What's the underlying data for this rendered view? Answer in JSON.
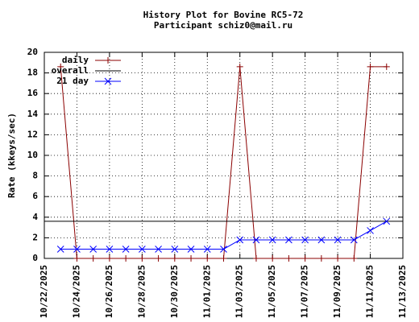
{
  "chart_data": {
    "type": "line",
    "title": "History Plot for Bovine RC5-72",
    "subtitle": "Participant schiz0@mail.ru",
    "y_label": "Rate (kkeys/sec)",
    "x": [
      "10/23/2025",
      "10/24/2025",
      "10/25/2025",
      "10/26/2025",
      "10/27/2025",
      "10/28/2025",
      "10/29/2025",
      "10/30/2025",
      "10/31/2025",
      "11/01/2025",
      "11/02/2025",
      "11/03/2025",
      "11/04/2025",
      "11/05/2025",
      "11/06/2025",
      "11/07/2025",
      "11/08/2025",
      "11/09/2025",
      "11/10/2025",
      "11/11/2025",
      "11/12/2025"
    ],
    "series": [
      {
        "name": "daily",
        "color": "#8b0000",
        "marker": "plus",
        "values": [
          18.6,
          0,
          0,
          0,
          0,
          0,
          0,
          0,
          0,
          0,
          0,
          18.6,
          0,
          0,
          0,
          0,
          0,
          0,
          0,
          18.6,
          18.6
        ]
      },
      {
        "name": "overall",
        "color": "#000000",
        "value": 3.6
      },
      {
        "name": "21 day",
        "color": "#0000ff",
        "marker": "cross",
        "values": [
          0.9,
          0.9,
          0.9,
          0.9,
          0.9,
          0.9,
          0.9,
          0.9,
          0.9,
          0.9,
          0.9,
          1.8,
          1.8,
          1.8,
          1.8,
          1.8,
          1.8,
          1.8,
          1.8,
          2.7,
          3.6
        ]
      }
    ],
    "xlim": [
      "10/22/2025",
      "11/13/2025"
    ],
    "xticks": [
      "10/22/2025",
      "10/24/2025",
      "10/26/2025",
      "10/28/2025",
      "10/30/2025",
      "11/01/2025",
      "11/03/2025",
      "11/05/2025",
      "11/07/2025",
      "11/09/2025",
      "11/11/2025",
      "11/13/2025"
    ],
    "ylim": [
      0,
      20
    ],
    "yticks": [
      0,
      2,
      4,
      6,
      8,
      10,
      12,
      14,
      16,
      18,
      20
    ],
    "grid": true,
    "legend": "top-left"
  }
}
